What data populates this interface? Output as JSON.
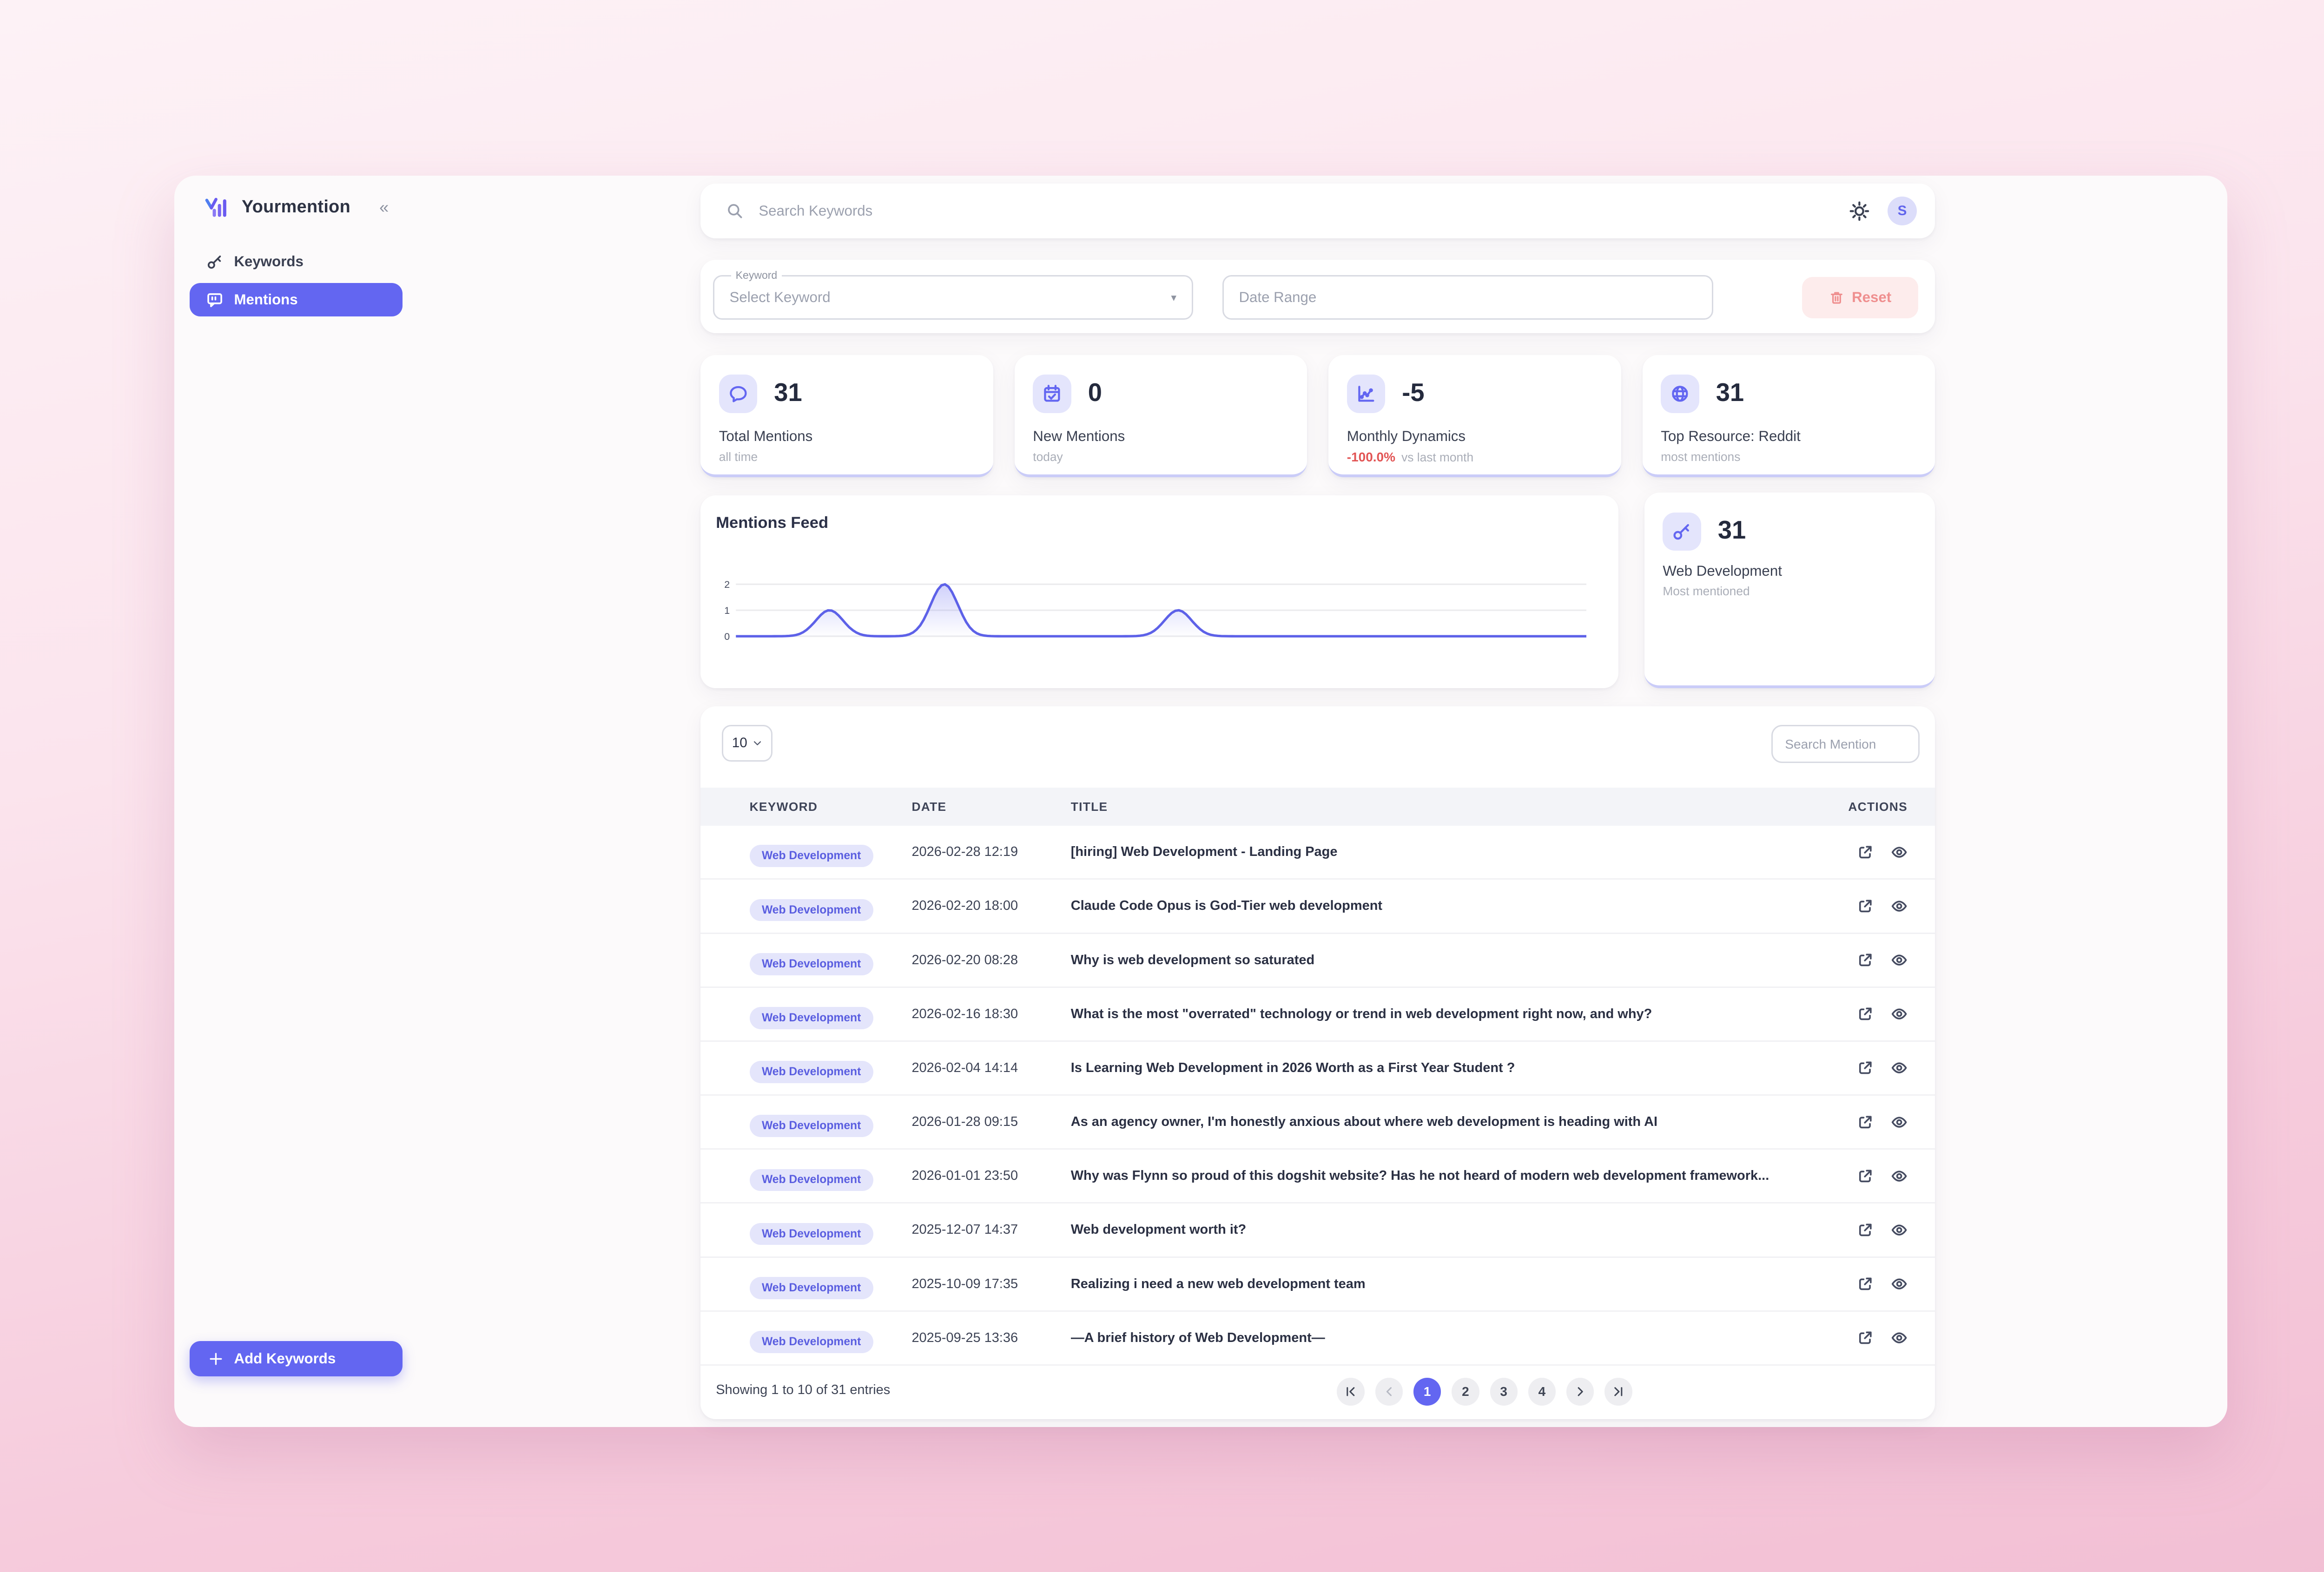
{
  "sidebar": {
    "brand": "Yourmention",
    "collapse_icon": "«",
    "items": [
      {
        "label": "Keywords",
        "icon": "key",
        "active": false
      },
      {
        "label": "Mentions",
        "icon": "mention",
        "active": true
      }
    ],
    "add_button_label": "Add Keywords"
  },
  "topbar": {
    "search_placeholder": "Search Keywords",
    "avatar_initial": "S"
  },
  "filters": {
    "keyword_label": "Keyword",
    "keyword_placeholder": "Select Keyword",
    "caret": "▾",
    "date_placeholder": "Date Range",
    "reset_label": "Reset"
  },
  "stats": [
    {
      "icon": "speech-bubble",
      "value": "31",
      "label": "Total Mentions",
      "sub": "all time"
    },
    {
      "icon": "calendar",
      "value": "0",
      "label": "New Mentions",
      "sub": "today"
    },
    {
      "icon": "line-chart",
      "value": "-5",
      "label": "Monthly Dynamics",
      "delta": "-100.0%",
      "sub": "vs last month"
    },
    {
      "icon": "globe",
      "value": "31",
      "label": "Top Resource: Reddit",
      "sub": "most mentions"
    }
  ],
  "keyword_stat_card": {
    "icon": "key",
    "value": "31",
    "label": "Web Development",
    "sub": "Most mentioned"
  },
  "chart_data": {
    "type": "area",
    "title": "Mentions Feed",
    "xlabel": "",
    "ylabel": "",
    "ylim": [
      0,
      2
    ],
    "yticks": [
      0,
      1,
      2
    ],
    "x_axis_labels": "none",
    "grid": "horizontal",
    "legend": "none",
    "line_color": "#5d61e8",
    "fill_color": "#6366f1",
    "series": [
      {
        "name": "Mentions",
        "baseline": 0,
        "peaks": [
          {
            "x_fraction": 0.11,
            "value": 1
          },
          {
            "x_fraction": 0.245,
            "value": 2
          },
          {
            "x_fraction": 0.52,
            "value": 1
          }
        ]
      }
    ]
  },
  "table": {
    "page_size": "10",
    "search_placeholder": "Search Mention",
    "columns": [
      "KEYWORD",
      "DATE",
      "TITLE",
      "ACTIONS"
    ],
    "rows": [
      {
        "keyword": "Web Development",
        "date": "2026-02-28 12:19",
        "title": "[hiring] Web Development - Landing Page"
      },
      {
        "keyword": "Web Development",
        "date": "2026-02-20 18:00",
        "title": "Claude Code Opus is God-Tier web development"
      },
      {
        "keyword": "Web Development",
        "date": "2026-02-20 08:28",
        "title": "Why is web development so saturated"
      },
      {
        "keyword": "Web Development",
        "date": "2026-02-16 18:30",
        "title": "What is the most \"overrated\" technology or trend in web development right now, and why?"
      },
      {
        "keyword": "Web Development",
        "date": "2026-02-04 14:14",
        "title": "Is Learning Web Development in 2026 Worth as a First Year Student ?"
      },
      {
        "keyword": "Web Development",
        "date": "2026-01-28 09:15",
        "title": "As an agency owner, I'm honestly anxious about where web development is heading with AI"
      },
      {
        "keyword": "Web Development",
        "date": "2026-01-01 23:50",
        "title": "Why was Flynn so proud of this dogshit website? Has he not heard of modern web development framework..."
      },
      {
        "keyword": "Web Development",
        "date": "2025-12-07 14:37",
        "title": "Web development worth it?"
      },
      {
        "keyword": "Web Development",
        "date": "2025-10-09 17:35",
        "title": "Realizing i need a new web development team"
      },
      {
        "keyword": "Web Development",
        "date": "2025-09-25 13:36",
        "title": "—A brief history of Web Development—"
      }
    ],
    "footer_text": "Showing 1 to 10 of 31 entries",
    "pagination": {
      "buttons": [
        {
          "kind": "first",
          "icon": "pg-first"
        },
        {
          "kind": "prev",
          "icon": "pg-prev",
          "disabled": true
        },
        {
          "kind": "page",
          "label": "1",
          "active": true
        },
        {
          "kind": "page",
          "label": "2"
        },
        {
          "kind": "page",
          "label": "3"
        },
        {
          "kind": "page",
          "label": "4"
        },
        {
          "kind": "next",
          "icon": "pg-next"
        },
        {
          "kind": "last",
          "icon": "pg-last"
        }
      ]
    }
  },
  "colors": {
    "accent": "#6366f1",
    "accent_tile": "#e4e5fc",
    "accent_card_border": "#caccf8",
    "badge_bg": "#e4e5fb",
    "badge_text": "#5a5ee0",
    "danger": "#e25555",
    "reset_bg": "#fdecec",
    "reset_text": "#ef8f8f",
    "page_gradient_top": "#fdf2f6",
    "page_gradient_bottom": "#f2bfd4"
  }
}
